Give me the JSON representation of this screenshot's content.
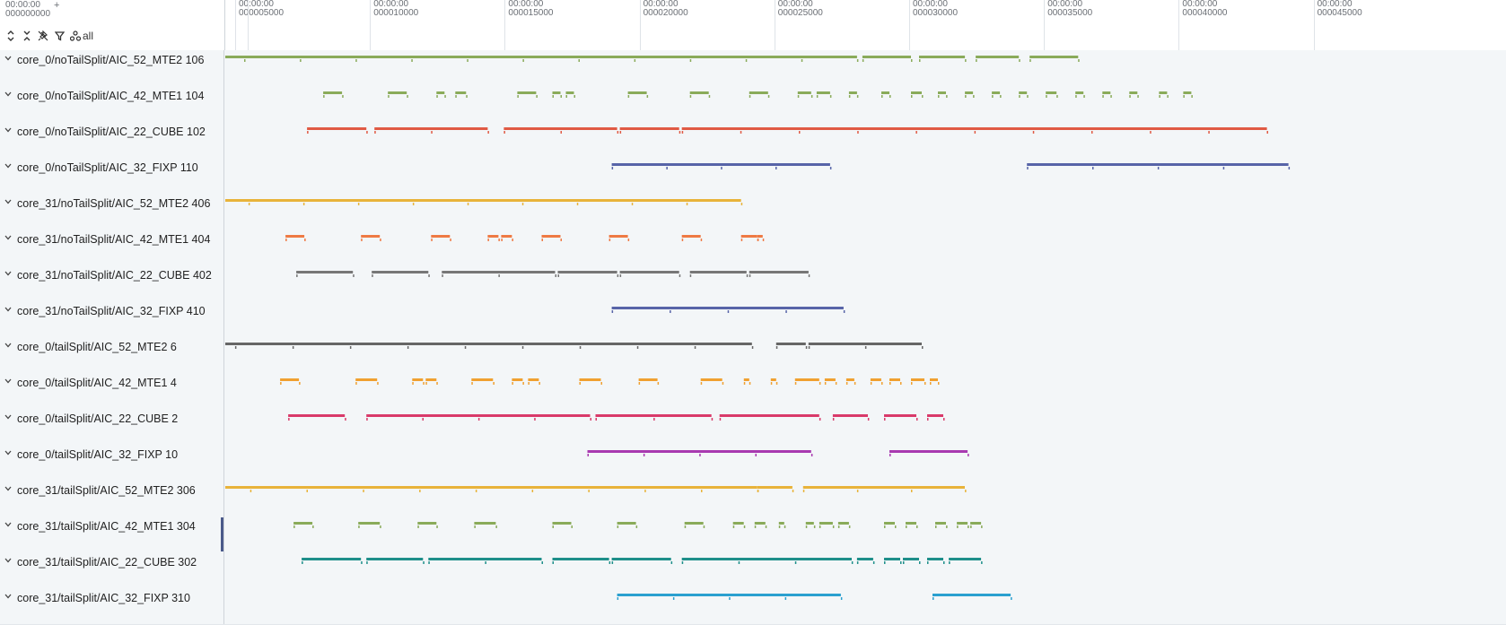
{
  "ruler": {
    "time0_line1": "00:00:00",
    "time0_line2": "000000000",
    "plus": "+",
    "ticks": [
      {
        "line1": "00:00:00",
        "line2": "000005000",
        "value": 5000
      },
      {
        "line1": "00:00:00",
        "line2": "000010000",
        "value": 10000
      },
      {
        "line1": "00:00:00",
        "line2": "000015000",
        "value": 15000
      },
      {
        "line1": "00:00:00",
        "line2": "000020000",
        "value": 20000
      },
      {
        "line1": "00:00:00",
        "line2": "000025000",
        "value": 25000
      },
      {
        "line1": "00:00:00",
        "line2": "000030000",
        "value": 30000
      },
      {
        "line1": "00:00:00",
        "line2": "000035000",
        "value": 35000
      },
      {
        "line1": "00:00:00",
        "line2": "000040000",
        "value": 40000
      },
      {
        "line1": "00:00:00",
        "line2": "000045000",
        "value": 45000
      }
    ]
  },
  "toolbar": {
    "icons": [
      "expand-all-icon",
      "collapse-all-icon",
      "unpin-icon",
      "filter-icon"
    ],
    "all_label": "all"
  },
  "tracks": [
    {
      "label": "core_0/noTailSplit/AIC_52_MTE2 106",
      "color": "#8aab5a",
      "segments": [
        [
          3200,
          28000
        ],
        [
          28200,
          30000
        ],
        [
          30300,
          32000
        ],
        [
          32400,
          34000
        ],
        [
          34400,
          36200
        ]
      ]
    },
    {
      "label": "core_0/noTailSplit/AIC_42_MTE1 104",
      "color": "#8aab5a",
      "segments": [
        [
          8200,
          8900
        ],
        [
          10600,
          11300
        ],
        [
          12400,
          12700
        ],
        [
          13100,
          13500
        ],
        [
          15400,
          16100
        ],
        [
          16700,
          17000
        ],
        [
          17200,
          17500
        ],
        [
          19500,
          20200
        ],
        [
          21800,
          22500
        ],
        [
          24000,
          24700
        ],
        [
          25800,
          26300
        ],
        [
          26500,
          27000
        ],
        [
          27700,
          28000
        ],
        [
          28900,
          29200
        ],
        [
          30000,
          30400
        ],
        [
          31000,
          31300
        ],
        [
          32000,
          32300
        ],
        [
          33000,
          33300
        ],
        [
          34000,
          34300
        ],
        [
          35000,
          35400
        ],
        [
          36100,
          36400
        ],
        [
          37100,
          37400
        ],
        [
          38100,
          38400
        ],
        [
          39200,
          39500
        ],
        [
          40100,
          40400
        ]
      ]
    },
    {
      "label": "core_0/noTailSplit/AIC_22_CUBE 102",
      "color": "#e05a44",
      "segments": [
        [
          7600,
          9800
        ],
        [
          10100,
          14300
        ],
        [
          14900,
          19100
        ],
        [
          19200,
          21400
        ],
        [
          21500,
          43200
        ]
      ]
    },
    {
      "label": "core_0/noTailSplit/AIC_32_FIXP 110",
      "color": "#5764a8",
      "segments": [
        [
          18900,
          27000
        ],
        [
          34300,
          44000
        ]
      ]
    },
    {
      "label": "core_31/noTailSplit/AIC_52_MTE2 406",
      "color": "#e8b33a",
      "segments": [
        [
          3400,
          23700
        ]
      ]
    },
    {
      "label": "core_31/noTailSplit/AIC_42_MTE1 404",
      "color": "#ee7a44",
      "segments": [
        [
          6800,
          7500
        ],
        [
          9600,
          10300
        ],
        [
          12200,
          12900
        ],
        [
          14300,
          14700
        ],
        [
          14800,
          15200
        ],
        [
          16300,
          17000
        ],
        [
          18800,
          19500
        ],
        [
          21500,
          22200
        ],
        [
          23700,
          24300
        ],
        [
          24300,
          24500
        ]
      ]
    },
    {
      "label": "core_31/noTailSplit/AIC_22_CUBE 402",
      "color": "#777777",
      "segments": [
        [
          7200,
          9300
        ],
        [
          10000,
          12100
        ],
        [
          12600,
          16800
        ],
        [
          16900,
          19100
        ],
        [
          19200,
          21400
        ],
        [
          21800,
          23900
        ],
        [
          24000,
          26200
        ]
      ]
    },
    {
      "label": "core_31/noTailSplit/AIC_32_FIXP 410",
      "color": "#5764a8",
      "segments": [
        [
          18900,
          27500
        ]
      ]
    },
    {
      "label": "core_0/tailSplit/AIC_52_MTE2 6",
      "color": "#666666",
      "segments": [
        [
          2800,
          24100
        ],
        [
          25000,
          26100
        ],
        [
          26200,
          30400
        ]
      ]
    },
    {
      "label": "core_0/tailSplit/AIC_42_MTE1 4",
      "color": "#f0a030",
      "segments": [
        [
          6600,
          7300
        ],
        [
          9400,
          10200
        ],
        [
          11500,
          11900
        ],
        [
          12000,
          12400
        ],
        [
          13700,
          14500
        ],
        [
          15200,
          15600
        ],
        [
          15800,
          16200
        ],
        [
          17700,
          18500
        ],
        [
          19900,
          20600
        ],
        [
          22200,
          23000
        ],
        [
          23800,
          24000
        ],
        [
          24800,
          25000
        ],
        [
          25700,
          26600
        ],
        [
          26800,
          27200
        ],
        [
          27600,
          27900
        ],
        [
          28500,
          28900
        ],
        [
          29200,
          29600
        ],
        [
          30000,
          30500
        ],
        [
          30700,
          31000
        ]
      ]
    },
    {
      "label": "core_0/tailSplit/AIC_22_CUBE 2",
      "color": "#d93a6a",
      "segments": [
        [
          6900,
          9000
        ],
        [
          9800,
          18100
        ],
        [
          18300,
          22600
        ],
        [
          22900,
          26600
        ],
        [
          27100,
          28400
        ],
        [
          29000,
          30200
        ],
        [
          30600,
          31200
        ]
      ]
    },
    {
      "label": "core_0/tailSplit/AIC_32_FIXP 10",
      "color": "#a83ab0",
      "segments": [
        [
          18000,
          26300
        ],
        [
          29200,
          32100
        ]
      ]
    },
    {
      "label": "core_31/tailSplit/AIC_52_MTE2 306",
      "color": "#e8b33a",
      "segments": [
        [
          3400,
          24300
        ],
        [
          24300,
          25600
        ],
        [
          26000,
          32000
        ]
      ]
    },
    {
      "label": "core_31/tailSplit/AIC_42_MTE1 304",
      "color": "#8aab5a",
      "segments": [
        [
          7100,
          7800
        ],
        [
          9500,
          10300
        ],
        [
          11700,
          12400
        ],
        [
          13800,
          14600
        ],
        [
          16700,
          17400
        ],
        [
          19100,
          19800
        ],
        [
          21600,
          22300
        ],
        [
          23400,
          23800
        ],
        [
          24200,
          24600
        ],
        [
          25100,
          25300
        ],
        [
          26100,
          26400
        ],
        [
          26600,
          27100
        ],
        [
          27300,
          27700
        ],
        [
          29000,
          29400
        ],
        [
          29800,
          30200
        ],
        [
          30900,
          31300
        ],
        [
          31700,
          32100
        ],
        [
          32200,
          32600
        ]
      ]
    },
    {
      "label": "core_31/tailSplit/AIC_22_CUBE 302",
      "color": "#1e8f8a",
      "segments": [
        [
          7400,
          9600
        ],
        [
          9800,
          11900
        ],
        [
          12100,
          16300
        ],
        [
          16700,
          18800
        ],
        [
          18900,
          21100
        ],
        [
          21500,
          27800
        ],
        [
          28000,
          28600
        ],
        [
          29000,
          29600
        ],
        [
          29700,
          30300
        ],
        [
          30600,
          31200
        ],
        [
          31400,
          32600
        ]
      ]
    },
    {
      "label": "core_31/tailSplit/AIC_32_FIXP 310",
      "color": "#2aa0d0",
      "segments": [
        [
          19100,
          27400
        ],
        [
          30800,
          33700
        ]
      ]
    }
  ]
}
